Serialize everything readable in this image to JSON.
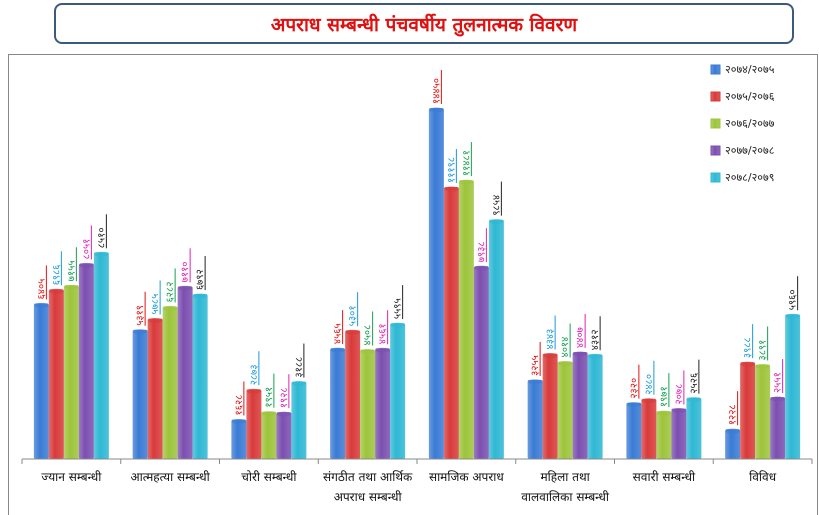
{
  "title": "अपराध सम्बन्धी पंचवर्षीय तुलनात्मक विवरण",
  "chart_data": {
    "type": "bar",
    "title": "अपराध सम्बन्धी पंचवर्षीय तुलनात्मक विवरण",
    "xlabel": "",
    "ylabel": "",
    "ylim": [
      0,
      15000
    ],
    "grid": false,
    "legend_position": "top-right",
    "categories": [
      [
        "ज्यान सम्बन्धी"
      ],
      [
        "आत्महत्या सम्बन्धी"
      ],
      [
        "चोरी सम्बन्धी"
      ],
      [
        "संगठीत तथा आर्थिक",
        "अपराध सम्बन्धी"
      ],
      [
        "सामजिक अपराध"
      ],
      [
        "महिला तथा",
        "वालवालिका सम्बन्धी"
      ],
      [
        "सवारी सम्बन्धी"
      ],
      [
        "विविध"
      ]
    ],
    "series": [
      {
        "name": "२०७४/२०७५",
        "color": "#3a7bd5",
        "label_color": "#e01010",
        "values": [
          6405,
          5319,
          1628,
          4565,
          14450,
          3255,
          2320,
          1228
        ],
        "labels": [
          "६४०५",
          "५३१९",
          "१६२८",
          "४५६५",
          "१४४५०",
          "३२५५",
          "२३२०",
          "१२२८"
        ]
      },
      {
        "name": "२०७५/२०७६",
        "color": "#d93a3a",
        "label_color": "#1a9ad8",
        "values": [
          6986,
          5785,
          2873,
          5301,
          11198,
          4343,
          2480,
          3988
        ],
        "labels": [
          "६९८६",
          "५७८५",
          "२८७३",
          "५३०१",
          "१११९८",
          "४३४३",
          "२४८०",
          "३९८८"
        ]
      },
      {
        "name": "२०७६/२०७७",
        "color": "#9dc43b",
        "label_color": "#12a050",
        "values": [
          7155,
          6282,
          1951,
          4508,
          11481,
          4014,
          1971,
          3891
        ],
        "labels": [
          "७१५५",
          "६२८२",
          "१९५१",
          "४५०८",
          "११४८१",
          "४०१४",
          "१९७१",
          "३८९१"
        ]
      },
      {
        "name": "२०७७/२०७८",
        "color": "#7b4fb0",
        "label_color": "#e020b0",
        "values": [
          8051,
          7110,
          1928,
          4561,
          7938,
          4407,
          2078,
          2551
        ],
        "labels": [
          "८०५१",
          "७११०",
          "१९२८",
          "४५६१",
          "७९३८",
          "४४०७",
          "२०७८",
          "२५५१"
        ]
      },
      {
        "name": "२०७८/२०७९",
        "color": "#2eb8d4",
        "label_color": "#222222",
        "values": [
          8510,
          6792,
          3188,
          5595,
          9854,
          4312,
          2526,
          5960
        ],
        "labels": [
          "८५१०",
          "६७९२",
          "३१८८",
          "५५९५",
          "९८५४",
          "४३१२",
          "२५२६",
          "५९६०"
        ]
      }
    ]
  }
}
